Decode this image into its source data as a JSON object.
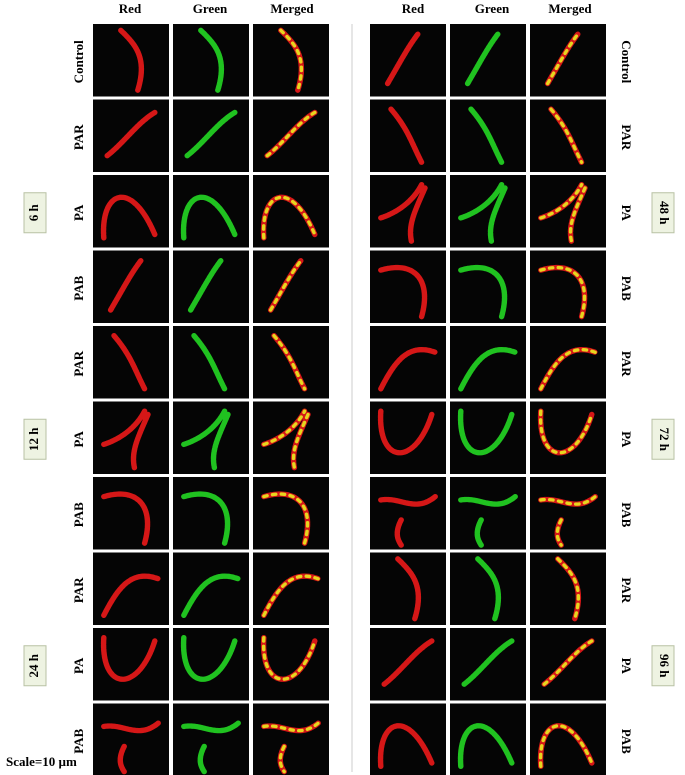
{
  "panels": [
    {
      "columns": [
        "Red",
        "Green",
        "Merged"
      ],
      "rows": [
        "Control",
        "PAR",
        "PA",
        "PAB",
        "PAR",
        "PA",
        "PAB",
        "PAR",
        "PA",
        "PAB"
      ],
      "groups": [
        "6 h",
        "12 h",
        "24 h"
      ]
    },
    {
      "columns": [
        "Red",
        "Green",
        "Merged"
      ],
      "rows": [
        "Control",
        "PAR",
        "PA",
        "PAB",
        "PAR",
        "PA",
        "PAB",
        "PAR",
        "PA",
        "PAB"
      ],
      "groups": [
        "48 h",
        "72 h",
        "96 h"
      ]
    }
  ],
  "scale": "Scale=10 µm"
}
